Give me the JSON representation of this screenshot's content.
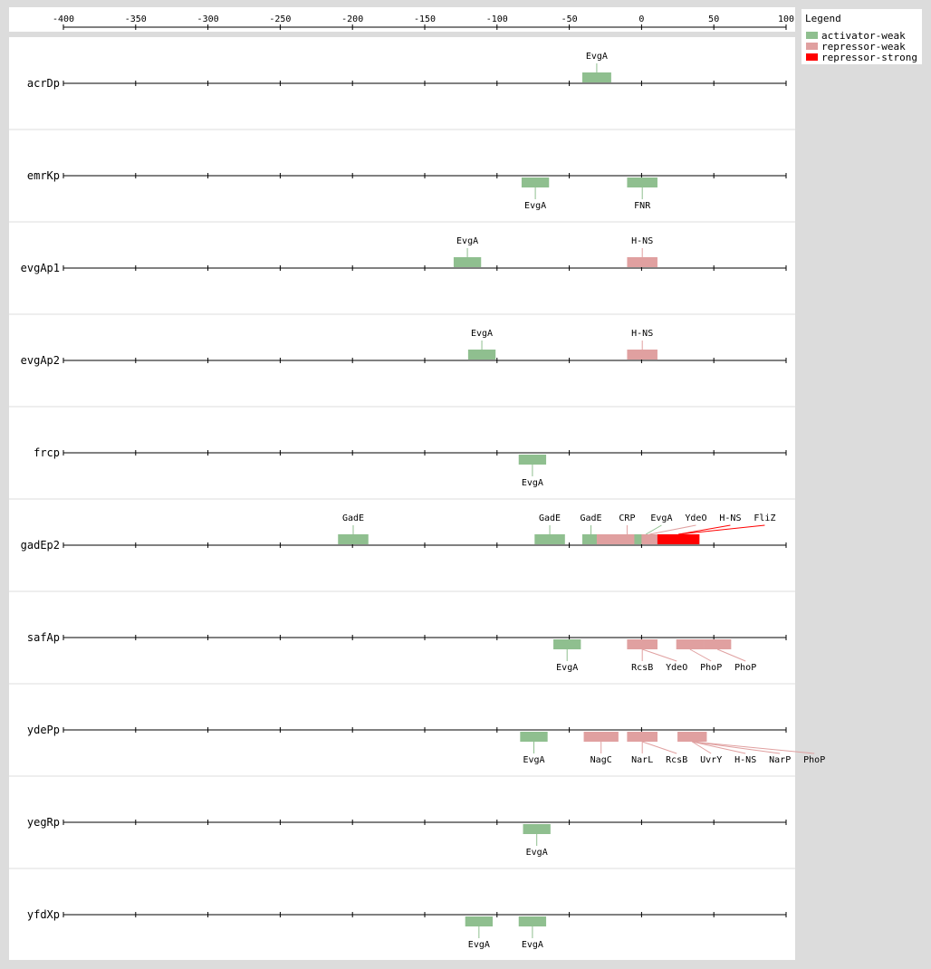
{
  "legend": {
    "title": "Legend",
    "items": [
      {
        "label": "activator-weak",
        "color": "#8fbf8f"
      },
      {
        "label": "repressor-weak",
        "color": "#e0a0a0"
      },
      {
        "label": "repressor-strong",
        "color": "#ff0000"
      }
    ]
  },
  "axis": {
    "min": -400,
    "max": 100,
    "ticks": [
      -400,
      -350,
      -300,
      -250,
      -200,
      -150,
      -100,
      -50,
      0,
      50,
      100
    ]
  },
  "promoters": [
    {
      "name": "acrDp",
      "sites": [
        {
          "tf": "EvgA",
          "type": "activator-weak",
          "start": -41,
          "end": -21,
          "above": true
        }
      ]
    },
    {
      "name": "emrKp",
      "sites": [
        {
          "tf": "EvgA",
          "type": "activator-weak",
          "start": -83,
          "end": -64,
          "above": false
        },
        {
          "tf": "FNR",
          "type": "activator-weak",
          "start": -10,
          "end": 11,
          "above": false
        }
      ]
    },
    {
      "name": "evgAp1",
      "sites": [
        {
          "tf": "EvgA",
          "type": "activator-weak",
          "start": -130,
          "end": -111,
          "above": true
        },
        {
          "tf": "H-NS",
          "type": "repressor-weak",
          "start": -10,
          "end": 11,
          "above": true
        }
      ]
    },
    {
      "name": "evgAp2",
      "sites": [
        {
          "tf": "EvgA",
          "type": "activator-weak",
          "start": -120,
          "end": -101,
          "above": true
        },
        {
          "tf": "H-NS",
          "type": "repressor-weak",
          "start": -10,
          "end": 11,
          "above": true
        }
      ]
    },
    {
      "name": "frcp",
      "sites": [
        {
          "tf": "EvgA",
          "type": "activator-weak",
          "start": -85,
          "end": -66,
          "above": false
        }
      ]
    },
    {
      "name": "gadEp2",
      "sites": [
        {
          "tf": "GadE",
          "type": "activator-weak",
          "start": -210,
          "end": -189,
          "above": true
        },
        {
          "tf": "GadE",
          "type": "activator-weak",
          "start": -74,
          "end": -53,
          "above": true
        },
        {
          "tf": "GadE",
          "type": "activator-weak",
          "start": -41,
          "end": -29,
          "above": true
        },
        {
          "tf": "CRP",
          "type": "repressor-weak",
          "start": -31,
          "end": 11,
          "above": true
        },
        {
          "tf": "EvgA",
          "type": "activator-weak",
          "start": -5,
          "end": 11,
          "above": true
        },
        {
          "tf": "YdeO",
          "type": "repressor-weak",
          "start": 0,
          "end": 11,
          "above": true
        },
        {
          "tf": "H-NS",
          "type": "repressor-strong",
          "start": 11,
          "end": 40,
          "above": true
        },
        {
          "tf": "FliZ",
          "type": "repressor-strong",
          "start": 11,
          "end": 40,
          "above": true
        }
      ]
    },
    {
      "name": "safAp",
      "sites": [
        {
          "tf": "EvgA",
          "type": "activator-weak",
          "start": -61,
          "end": -42,
          "above": false
        },
        {
          "tf": "RcsB",
          "type": "repressor-weak",
          "start": -10,
          "end": 11,
          "above": false
        },
        {
          "tf": "YdeO",
          "type": "repressor-weak",
          "start": -10,
          "end": 11,
          "above": false
        },
        {
          "tf": "PhoP",
          "type": "repressor-weak",
          "start": 24,
          "end": 43,
          "above": false
        },
        {
          "tf": "PhoP",
          "type": "repressor-weak",
          "start": 43,
          "end": 62,
          "above": false
        }
      ]
    },
    {
      "name": "ydePp",
      "sites": [
        {
          "tf": "EvgA",
          "type": "activator-weak",
          "start": -84,
          "end": -65,
          "above": false
        },
        {
          "tf": "NagC",
          "type": "repressor-weak",
          "start": -40,
          "end": -16,
          "above": false
        },
        {
          "tf": "NarL",
          "type": "repressor-weak",
          "start": -10,
          "end": 11,
          "above": false
        },
        {
          "tf": "RcsB",
          "type": "repressor-weak",
          "start": -10,
          "end": 11,
          "above": false
        },
        {
          "tf": "UvrY",
          "type": "repressor-weak",
          "start": 25,
          "end": 45,
          "above": false
        },
        {
          "tf": "H-NS",
          "type": "repressor-weak",
          "start": 25,
          "end": 45,
          "above": false
        },
        {
          "tf": "NarP",
          "type": "repressor-weak",
          "start": 25,
          "end": 45,
          "above": false
        },
        {
          "tf": "PhoP",
          "type": "repressor-weak",
          "start": 25,
          "end": 45,
          "above": false
        }
      ]
    },
    {
      "name": "yegRp",
      "sites": [
        {
          "tf": "EvgA",
          "type": "activator-weak",
          "start": -82,
          "end": -63,
          "above": false
        }
      ]
    },
    {
      "name": "yfdXp",
      "sites": [
        {
          "tf": "EvgA",
          "type": "activator-weak",
          "start": -122,
          "end": -103,
          "above": false
        },
        {
          "tf": "EvgA",
          "type": "activator-weak",
          "start": -85,
          "end": -66,
          "above": false
        }
      ]
    }
  ]
}
